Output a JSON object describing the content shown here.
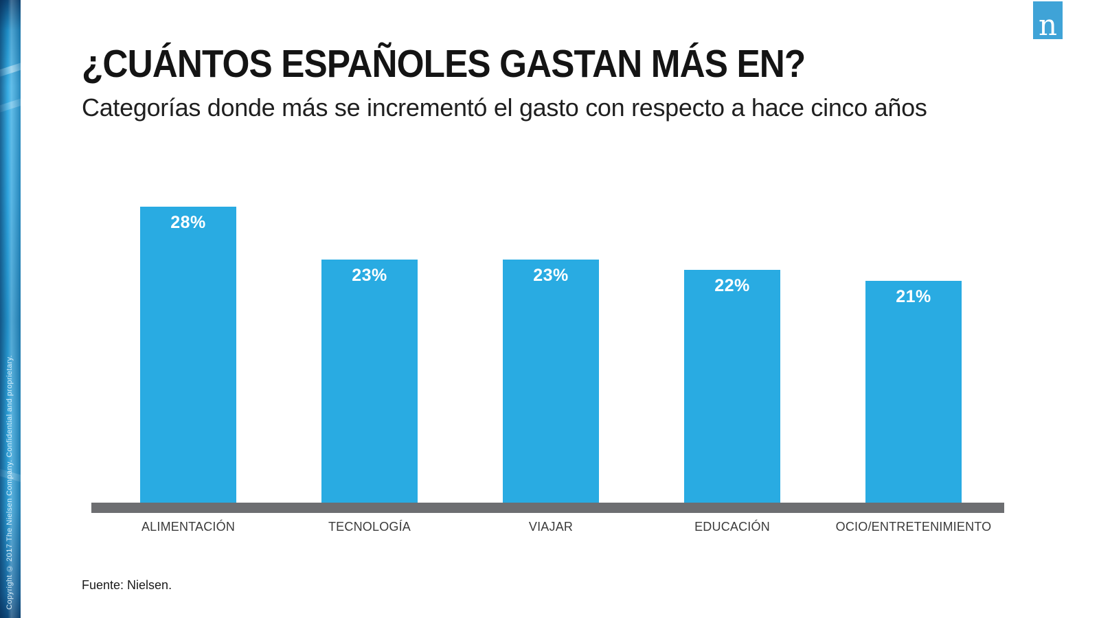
{
  "page": {
    "title": "¿CUÁNTOS ESPAÑOLES GASTAN MÁS EN?",
    "subtitle": "Categorías donde más se incrementó el gasto con respecto a hace cinco años",
    "source": "Fuente: Nielsen.",
    "sidebar_copyright": "Copyright © 2017 The Nielsen Company. Confidential and proprietary.",
    "logo_letter": "n"
  },
  "colors": {
    "bar": "#29ABE2",
    "axis": "#6D6E71",
    "logo_bg": "#3FA3D7"
  },
  "chart_data": {
    "type": "bar",
    "title": "¿CUÁNTOS ESPAÑOLES GASTAN MÁS EN?",
    "subtitle": "Categorías donde más se incrementó el gasto con respecto a hace cinco años",
    "categories": [
      "ALIMENTACIÓN",
      "TECNOLOGÍA",
      "VIAJAR",
      "EDUCACIÓN",
      "OCIO/ENTRETENIMIENTO"
    ],
    "values": [
      28,
      23,
      23,
      22,
      21
    ],
    "value_labels": [
      "28%",
      "23%",
      "23%",
      "22%",
      "21%"
    ],
    "bar_color": "#29ABE2",
    "xlabel": "",
    "ylabel": "",
    "ylim": [
      0,
      30
    ],
    "grid": false,
    "legend": false,
    "value_label_position": "inside-top",
    "source": "Fuente: Nielsen."
  }
}
